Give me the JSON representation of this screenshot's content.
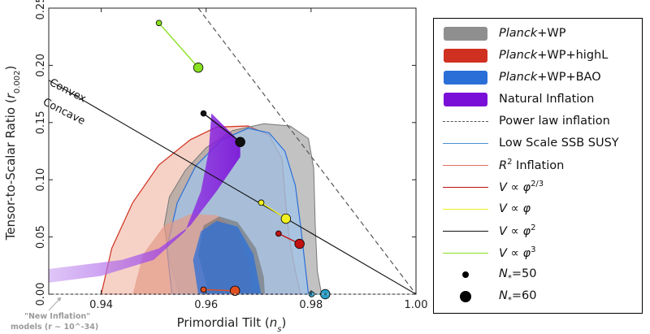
{
  "chart_data": {
    "type": "contour",
    "xlabel": "Primordial Tilt (n_s)",
    "ylabel": "Tensor-to-Scalar Ratio (r_0.002)",
    "xlim": [
      0.93,
      1.0
    ],
    "ylim": [
      0.0,
      0.25
    ],
    "x_ticks": [
      "0.94",
      "0.96",
      "0.98",
      "1.00"
    ],
    "y_ticks": [
      "0.00",
      "0.05",
      "0.10",
      "0.15",
      "0.20",
      "0.25"
    ],
    "annotations": {
      "convex": "Convex",
      "concave": "Concave",
      "new_inflation_line1": "\"New Inflation\"",
      "new_inflation_line2": "models (r ~ 10^-34)"
    },
    "colors": {
      "planck_wp": "#8f8f8f",
      "planck_wp_highl": "#d03020",
      "planck_wp_bao": "#2a6fd8",
      "natural_inflation": "#7a10d8",
      "power_law": "#555555",
      "low_scale_ssb_susy": "#4a90d0",
      "r2_inflation": "#e07060",
      "phi_2_3": "#c01010",
      "phi_1": "#f0f020",
      "phi_2": "#111111",
      "phi_3": "#88e020"
    },
    "legend": [
      {
        "key": "planck_wp",
        "pre": "Planck",
        "post": "+WP",
        "kind": "patch"
      },
      {
        "key": "planck_wp_highl",
        "pre": "Planck",
        "post": "+WP+highL",
        "kind": "patch"
      },
      {
        "key": "planck_wp_bao",
        "pre": "Planck",
        "post": "+WP+BAO",
        "kind": "patch"
      },
      {
        "key": "natural_inflation",
        "label": "Natural Inflation",
        "kind": "patch"
      },
      {
        "key": "power_law",
        "label": "Power law inflation",
        "kind": "dashed"
      },
      {
        "key": "low_scale_ssb_susy",
        "label": "Low Scale SSB SUSY",
        "kind": "line"
      },
      {
        "key": "r2_inflation",
        "base": "R",
        "sup": "2",
        "rest": " Inflation",
        "kind": "line"
      },
      {
        "key": "phi_2_3",
        "base": "V ∝ φ",
        "sup": "2/3",
        "rest": "",
        "kind": "line"
      },
      {
        "key": "phi_1",
        "base": "V ∝ φ",
        "sup": "",
        "rest": "",
        "kind": "line"
      },
      {
        "key": "phi_2",
        "base": "V ∝ φ",
        "sup": "2",
        "rest": "",
        "kind": "line"
      },
      {
        "key": "phi_3",
        "base": "V ∝ φ",
        "sup": "3",
        "rest": "",
        "kind": "line"
      },
      {
        "key": "n50",
        "base": "N",
        "sub": "*",
        "rest": "=50",
        "kind": "dot-small"
      },
      {
        "key": "n60",
        "base": "N",
        "sub": "*",
        "rest": "=60",
        "kind": "dot-large"
      }
    ],
    "power_law_line": {
      "x": [
        0.9585,
        1.0
      ],
      "y": [
        0.25,
        0.0
      ]
    },
    "convexity_line": {
      "x": [
        0.93,
        1.0
      ],
      "y": [
        0.187,
        0.0
      ]
    },
    "models": [
      {
        "name": "phi_3",
        "n50": [
          0.951,
          0.237
        ],
        "n60": [
          0.9585,
          0.198
        ],
        "color": "#88e020"
      },
      {
        "name": "phi_2",
        "n50": [
          0.9595,
          0.158
        ],
        "n60": [
          0.9665,
          0.133
        ],
        "color": "#111111"
      },
      {
        "name": "phi_1",
        "n50": [
          0.9705,
          0.08
        ],
        "n60": [
          0.9752,
          0.066
        ],
        "color": "#f0f020"
      },
      {
        "name": "phi_2_3",
        "n50": [
          0.9738,
          0.053
        ],
        "n60": [
          0.9778,
          0.044
        ],
        "color": "#c01010"
      },
      {
        "name": "r2_inflation",
        "n50": [
          0.9595,
          0.004
        ],
        "n60": [
          0.9655,
          0.003
        ],
        "color": "#e05020"
      },
      {
        "name": "low_scale_ssb_susy",
        "n50": [
          0.9801,
          0.0
        ],
        "n60": [
          0.9827,
          0.0
        ],
        "color": "#2aa0c8"
      }
    ],
    "contours": {
      "planck_wp_95": [
        [
          0.955,
          0.0
        ],
        [
          0.953,
          0.03
        ],
        [
          0.952,
          0.06
        ],
        [
          0.953,
          0.085
        ],
        [
          0.956,
          0.108
        ],
        [
          0.96,
          0.128
        ],
        [
          0.965,
          0.143
        ],
        [
          0.971,
          0.149
        ],
        [
          0.976,
          0.147
        ],
        [
          0.9795,
          0.136
        ],
        [
          0.9805,
          0.11
        ],
        [
          0.9808,
          0.06
        ],
        [
          0.9812,
          0.02
        ],
        [
          0.982,
          0.0
        ]
      ],
      "planck_wp_68": [
        [
          0.9605,
          0.0
        ],
        [
          0.9585,
          0.035
        ],
        [
          0.9595,
          0.06
        ],
        [
          0.9625,
          0.068
        ],
        [
          0.966,
          0.063
        ],
        [
          0.9695,
          0.04
        ],
        [
          0.971,
          0.015
        ],
        [
          0.9712,
          0.0
        ]
      ],
      "highl_95": [
        [
          0.94,
          0.0
        ],
        [
          0.942,
          0.04
        ],
        [
          0.946,
          0.08
        ],
        [
          0.951,
          0.113
        ],
        [
          0.957,
          0.135
        ],
        [
          0.962,
          0.146
        ],
        [
          0.968,
          0.147
        ],
        [
          0.972,
          0.139
        ],
        [
          0.9745,
          0.118
        ],
        [
          0.975,
          0.088
        ],
        [
          0.9758,
          0.05
        ],
        [
          0.977,
          0.02
        ],
        [
          0.978,
          0.0
        ]
      ],
      "highl_68": [
        [
          0.946,
          0.0
        ],
        [
          0.948,
          0.035
        ],
        [
          0.952,
          0.06
        ],
        [
          0.957,
          0.07
        ],
        [
          0.962,
          0.069
        ],
        [
          0.966,
          0.055
        ],
        [
          0.968,
          0.03
        ],
        [
          0.969,
          0.0
        ]
      ],
      "bao_95": [
        [
          0.9535,
          0.0
        ],
        [
          0.9525,
          0.04
        ],
        [
          0.9545,
          0.08
        ],
        [
          0.958,
          0.112
        ],
        [
          0.963,
          0.135
        ],
        [
          0.968,
          0.145
        ],
        [
          0.972,
          0.141
        ],
        [
          0.975,
          0.125
        ],
        [
          0.977,
          0.095
        ],
        [
          0.978,
          0.06
        ],
        [
          0.979,
          0.02
        ],
        [
          0.9795,
          0.0
        ]
      ],
      "bao_68": [
        [
          0.9585,
          0.0
        ],
        [
          0.9575,
          0.03
        ],
        [
          0.959,
          0.055
        ],
        [
          0.962,
          0.064
        ],
        [
          0.966,
          0.059
        ],
        [
          0.969,
          0.035
        ],
        [
          0.9705,
          0.0
        ]
      ],
      "natural_band": [
        [
          0.93,
          0.01
        ],
        [
          0.94,
          0.016
        ],
        [
          0.95,
          0.03
        ],
        [
          0.956,
          0.055
        ],
        [
          0.959,
          0.09
        ],
        [
          0.9605,
          0.125
        ],
        [
          0.961,
          0.158
        ],
        [
          0.9665,
          0.133
        ],
        [
          0.9665,
          0.12
        ],
        [
          0.962,
          0.09
        ],
        [
          0.957,
          0.06
        ],
        [
          0.951,
          0.04
        ],
        [
          0.944,
          0.03
        ],
        [
          0.93,
          0.022
        ]
      ]
    }
  }
}
